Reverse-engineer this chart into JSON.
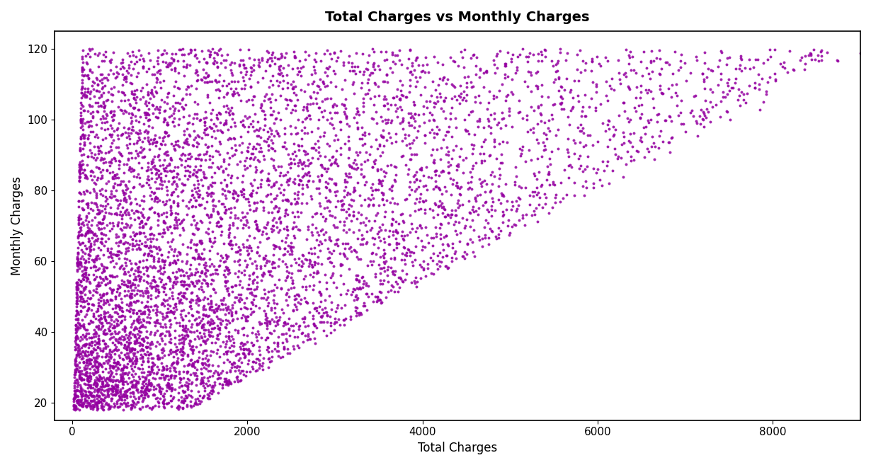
{
  "title": "Total Charges vs Monthly Charges",
  "xlabel": "Total Charges",
  "ylabel": "Monthly Charges",
  "dot_color": "#9400A0",
  "dot_size": 8,
  "dot_alpha": 0.85,
  "xlim": [
    -200,
    9000
  ],
  "ylim": [
    15,
    125
  ],
  "xticks": [
    0,
    2000,
    4000,
    6000,
    8000
  ],
  "yticks": [
    20,
    40,
    60,
    80,
    100,
    120
  ],
  "title_fontsize": 14,
  "label_fontsize": 12,
  "n_points": 7043,
  "seed": 42
}
